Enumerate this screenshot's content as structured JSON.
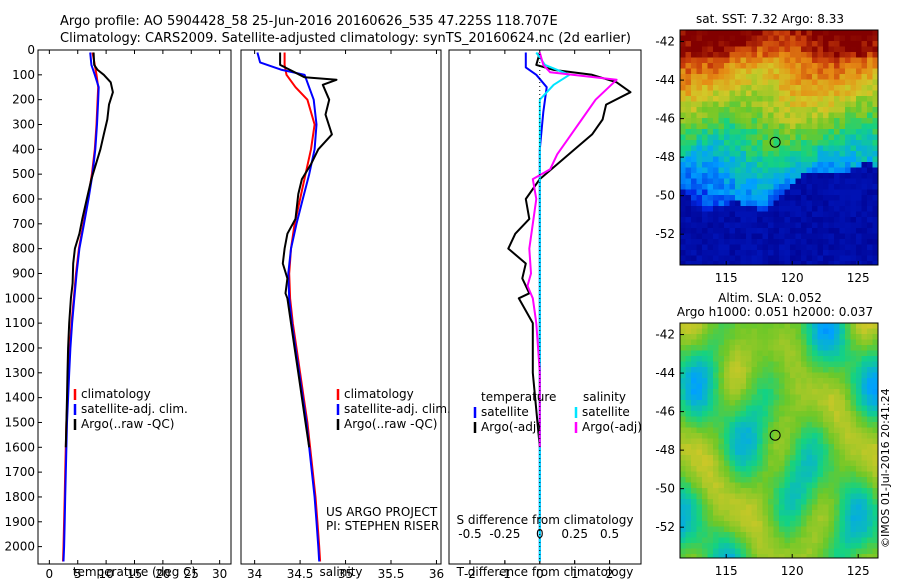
{
  "header": {
    "line1": "Argo profile: AO 5904428_58 25-Jun-2016 20160626_535 47.225S 118.707E",
    "line2": "Climatology: CARS2009. Satellite-adjusted climatology: synTS_20160624.nc (2d earlier)"
  },
  "colors": {
    "red": "#ff0000",
    "blue": "#0000ff",
    "black": "#000000",
    "cyan": "#00e5ff",
    "magenta": "#ff00ff"
  },
  "chart_data": [
    {
      "type": "line",
      "id": "temperature",
      "xlabel": "temperature (deg C)",
      "ylabel": "",
      "xlim": [
        -2,
        32
      ],
      "ylim": [
        2070,
        0
      ],
      "xticks": [
        0,
        5,
        10,
        15,
        20,
        25,
        30
      ],
      "yticks": [
        0,
        100,
        200,
        300,
        400,
        500,
        600,
        700,
        800,
        900,
        1000,
        1100,
        1200,
        1300,
        1400,
        1500,
        1600,
        1700,
        1800,
        1900,
        2000
      ],
      "legend": [
        "climatology",
        "satellite-adj. clim.",
        "Argo(..raw -QC)"
      ],
      "legend_position": "bottom-center",
      "series": [
        {
          "name": "climatology",
          "color": "red",
          "points": [
            [
              7.6,
              10
            ],
            [
              8.0,
              60
            ],
            [
              8.3,
              100
            ],
            [
              8.6,
              150
            ],
            [
              8.5,
              200
            ],
            [
              8.3,
              300
            ],
            [
              8.0,
              400
            ],
            [
              7.5,
              500
            ],
            [
              6.8,
              600
            ],
            [
              6.0,
              700
            ],
            [
              5.2,
              800
            ],
            [
              4.7,
              900
            ],
            [
              4.3,
              1000
            ],
            [
              3.9,
              1100
            ],
            [
              3.6,
              1200
            ],
            [
              3.4,
              1300
            ],
            [
              3.2,
              1400
            ],
            [
              3.0,
              1500
            ],
            [
              2.9,
              1600
            ],
            [
              2.8,
              1700
            ],
            [
              2.7,
              1800
            ],
            [
              2.6,
              1900
            ],
            [
              2.5,
              2000
            ],
            [
              2.4,
              2060
            ]
          ]
        },
        {
          "name": "satellite-adj. clim.",
          "color": "blue",
          "points": [
            [
              7.2,
              10
            ],
            [
              7.4,
              60
            ],
            [
              8.0,
              100
            ],
            [
              8.7,
              150
            ],
            [
              8.6,
              200
            ],
            [
              8.4,
              300
            ],
            [
              8.1,
              400
            ],
            [
              7.6,
              500
            ],
            [
              6.9,
              600
            ],
            [
              6.1,
              700
            ],
            [
              5.3,
              800
            ],
            [
              4.8,
              900
            ],
            [
              4.4,
              1000
            ],
            [
              4.0,
              1100
            ],
            [
              3.7,
              1200
            ],
            [
              3.5,
              1300
            ],
            [
              3.3,
              1400
            ],
            [
              3.1,
              1500
            ],
            [
              3.0,
              1600
            ],
            [
              2.9,
              1700
            ],
            [
              2.8,
              1800
            ],
            [
              2.7,
              1900
            ],
            [
              2.6,
              2000
            ],
            [
              2.5,
              2060
            ]
          ]
        },
        {
          "name": "Argo(..raw -QC)",
          "color": "black",
          "points": [
            [
              7.8,
              10
            ],
            [
              7.9,
              60
            ],
            [
              8.5,
              80
            ],
            [
              9.6,
              100
            ],
            [
              10.8,
              130
            ],
            [
              11.2,
              170
            ],
            [
              10.5,
              220
            ],
            [
              10.2,
              280
            ],
            [
              9.6,
              340
            ],
            [
              9.0,
              400
            ],
            [
              8.2,
              460
            ],
            [
              7.4,
              520
            ],
            [
              6.6,
              600
            ],
            [
              5.8,
              680
            ],
            [
              5.3,
              740
            ],
            [
              4.5,
              800
            ],
            [
              4.2,
              860
            ],
            [
              4.1,
              940
            ],
            [
              3.8,
              1000
            ],
            [
              3.5,
              1100
            ],
            [
              3.3,
              1200
            ],
            [
              3.2,
              1300
            ],
            [
              3.1,
              1400
            ],
            [
              3.0,
              1500
            ],
            [
              2.9,
              1600
            ]
          ]
        }
      ]
    },
    {
      "type": "line",
      "id": "salinity",
      "xlabel": "salinity",
      "ylabel": "",
      "xlim": [
        33.85,
        36.05
      ],
      "ylim": [
        2070,
        0
      ],
      "xticks": [
        34,
        34.5,
        35,
        35.5,
        36
      ],
      "legend": [
        "climatology",
        "satellite-adj. clim.",
        "Argo(..raw -QC)"
      ],
      "legend_position": "bottom-center",
      "annotation": [
        "US ARGO PROJECT",
        "PI: STEPHEN RISER"
      ],
      "series": [
        {
          "name": "climatology",
          "color": "red",
          "points": [
            [
              34.33,
              10
            ],
            [
              34.33,
              60
            ],
            [
              34.35,
              100
            ],
            [
              34.45,
              150
            ],
            [
              34.58,
              200
            ],
            [
              34.66,
              300
            ],
            [
              34.62,
              400
            ],
            [
              34.56,
              500
            ],
            [
              34.5,
              600
            ],
            [
              34.44,
              700
            ],
            [
              34.4,
              800
            ],
            [
              34.38,
              900
            ],
            [
              34.39,
              1000
            ],
            [
              34.42,
              1100
            ],
            [
              34.46,
              1200
            ],
            [
              34.5,
              1300
            ],
            [
              34.54,
              1400
            ],
            [
              34.58,
              1500
            ],
            [
              34.61,
              1600
            ],
            [
              34.64,
              1700
            ],
            [
              34.67,
              1800
            ],
            [
              34.69,
              1900
            ],
            [
              34.71,
              2000
            ],
            [
              34.72,
              2060
            ]
          ]
        },
        {
          "name": "satellite-adj. clim.",
          "color": "blue",
          "points": [
            [
              34.03,
              10
            ],
            [
              34.06,
              50
            ],
            [
              34.3,
              80
            ],
            [
              34.55,
              100
            ],
            [
              34.65,
              200
            ],
            [
              34.68,
              300
            ],
            [
              34.66,
              400
            ],
            [
              34.6,
              500
            ],
            [
              34.53,
              600
            ],
            [
              34.46,
              700
            ],
            [
              34.4,
              800
            ],
            [
              34.37,
              900
            ],
            [
              34.38,
              1000
            ],
            [
              34.41,
              1100
            ],
            [
              34.45,
              1200
            ],
            [
              34.49,
              1300
            ],
            [
              34.53,
              1400
            ],
            [
              34.57,
              1500
            ],
            [
              34.6,
              1600
            ],
            [
              34.63,
              1700
            ],
            [
              34.66,
              1800
            ],
            [
              34.68,
              1900
            ],
            [
              34.7,
              2000
            ],
            [
              34.71,
              2060
            ]
          ]
        },
        {
          "name": "Argo(..raw -QC)",
          "color": "black",
          "points": [
            [
              34.28,
              10
            ],
            [
              34.28,
              60
            ],
            [
              34.55,
              110
            ],
            [
              34.9,
              120
            ],
            [
              34.75,
              140
            ],
            [
              34.82,
              200
            ],
            [
              34.78,
              260
            ],
            [
              34.85,
              340
            ],
            [
              34.7,
              400
            ],
            [
              34.62,
              460
            ],
            [
              34.52,
              520
            ],
            [
              34.48,
              580
            ],
            [
              34.45,
              680
            ],
            [
              34.36,
              740
            ],
            [
              34.33,
              800
            ],
            [
              34.31,
              860
            ],
            [
              34.36,
              920
            ],
            [
              34.34,
              980
            ],
            [
              34.36,
              1000
            ],
            [
              34.4,
              1100
            ],
            [
              34.44,
              1200
            ],
            [
              34.48,
              1300
            ],
            [
              34.52,
              1400
            ],
            [
              34.56,
              1500
            ],
            [
              34.6,
              1600
            ]
          ]
        }
      ]
    },
    {
      "type": "line",
      "id": "differences",
      "xlabel": "T difference from climatology",
      "ylabel": "",
      "xlim": [
        -2.6,
        2.9
      ],
      "ylim": [
        2070,
        0
      ],
      "xticks": [
        -2,
        -1,
        0,
        1,
        2
      ],
      "sticks": [
        -0.5,
        -0.25,
        0,
        0.25,
        0.5
      ],
      "stick_title": "S difference from climatology",
      "legend_titles": [
        "temperature",
        "salinity"
      ],
      "legend": [
        "satellite",
        "Argo(-adj)",
        "satellite",
        "Argo(-adj)"
      ],
      "legend_position": "bottom-center",
      "series": [
        {
          "name": "satellite",
          "group": "temperature",
          "color": "blue",
          "points": [
            [
              -0.4,
              10
            ],
            [
              -0.4,
              70
            ],
            [
              -0.1,
              100
            ],
            [
              0.2,
              150
            ],
            [
              0.1,
              250
            ],
            [
              0.0,
              400
            ],
            [
              0.0,
              600
            ],
            [
              0.0,
              1000
            ],
            [
              0.0,
              1500
            ],
            [
              0.0,
              2000
            ],
            [
              0.0,
              2060
            ]
          ]
        },
        {
          "name": "Argo(-adj)",
          "group": "temperature",
          "color": "black",
          "points": [
            [
              0.0,
              10
            ],
            [
              -0.1,
              60
            ],
            [
              0.4,
              80
            ],
            [
              1.5,
              100
            ],
            [
              2.2,
              130
            ],
            [
              2.6,
              170
            ],
            [
              1.9,
              220
            ],
            [
              1.8,
              280
            ],
            [
              1.5,
              340
            ],
            [
              1.0,
              400
            ],
            [
              0.5,
              460
            ],
            [
              0.0,
              520
            ],
            [
              -0.4,
              600
            ],
            [
              -0.3,
              680
            ],
            [
              -0.7,
              740
            ],
            [
              -0.9,
              800
            ],
            [
              -0.4,
              860
            ],
            [
              -0.5,
              920
            ],
            [
              -0.3,
              980
            ],
            [
              -0.6,
              1000
            ],
            [
              -0.2,
              1100
            ],
            [
              -0.2,
              1300
            ],
            [
              0.0,
              1600
            ]
          ]
        },
        {
          "name": "satellite",
          "group": "salinity",
          "color": "cyan",
          "points": [
            [
              -0.1,
              10
            ],
            [
              0.15,
              60
            ],
            [
              0.85,
              100
            ],
            [
              0.4,
              140
            ],
            [
              0.0,
              200
            ],
            [
              0.0,
              400
            ],
            [
              0.0,
              1000
            ],
            [
              0.0,
              2000
            ],
            [
              0.0,
              2060
            ]
          ]
        },
        {
          "name": "Argo(-adj)",
          "group": "salinity",
          "color": "magenta",
          "points": [
            [
              0.0,
              10
            ],
            [
              0.1,
              60
            ],
            [
              0.3,
              90
            ],
            [
              2.2,
              120
            ],
            [
              1.6,
              200
            ],
            [
              1.2,
              280
            ],
            [
              0.8,
              360
            ],
            [
              0.5,
              420
            ],
            [
              0.3,
              480
            ],
            [
              -0.2,
              520
            ],
            [
              -0.1,
              600
            ],
            [
              -0.2,
              700
            ],
            [
              -0.3,
              800
            ],
            [
              -0.25,
              900
            ],
            [
              -0.35,
              950
            ],
            [
              -0.2,
              1000
            ],
            [
              -0.1,
              1100
            ],
            [
              0.0,
              1300
            ],
            [
              0.0,
              1600
            ]
          ]
        }
      ]
    },
    {
      "type": "heatmap",
      "id": "sst",
      "title": "sat. SST: 7.32  Argo: 8.33",
      "xlim": [
        111.5,
        126.5
      ],
      "ylim": [
        -53.6,
        -41.4
      ],
      "xticks": [
        115,
        120,
        125
      ],
      "yticks": [
        -42,
        -44,
        -46,
        -48,
        -50,
        -52
      ],
      "marker": [
        118.707,
        -47.225
      ]
    },
    {
      "type": "heatmap",
      "id": "sla",
      "title": "Altim. SLA: 0.052",
      "subtitle": "Argo h1000: 0.051  h2000: 0.037",
      "xlim": [
        111.5,
        126.5
      ],
      "ylim": [
        -53.6,
        -41.4
      ],
      "xticks": [
        115,
        120,
        125
      ],
      "yticks": [
        -42,
        -44,
        -46,
        -48,
        -50,
        -52
      ],
      "marker": [
        118.707,
        -47.225
      ]
    }
  ],
  "footer": {
    "stamp": "©IMOS 01-Jul-2016 20:41:24"
  }
}
